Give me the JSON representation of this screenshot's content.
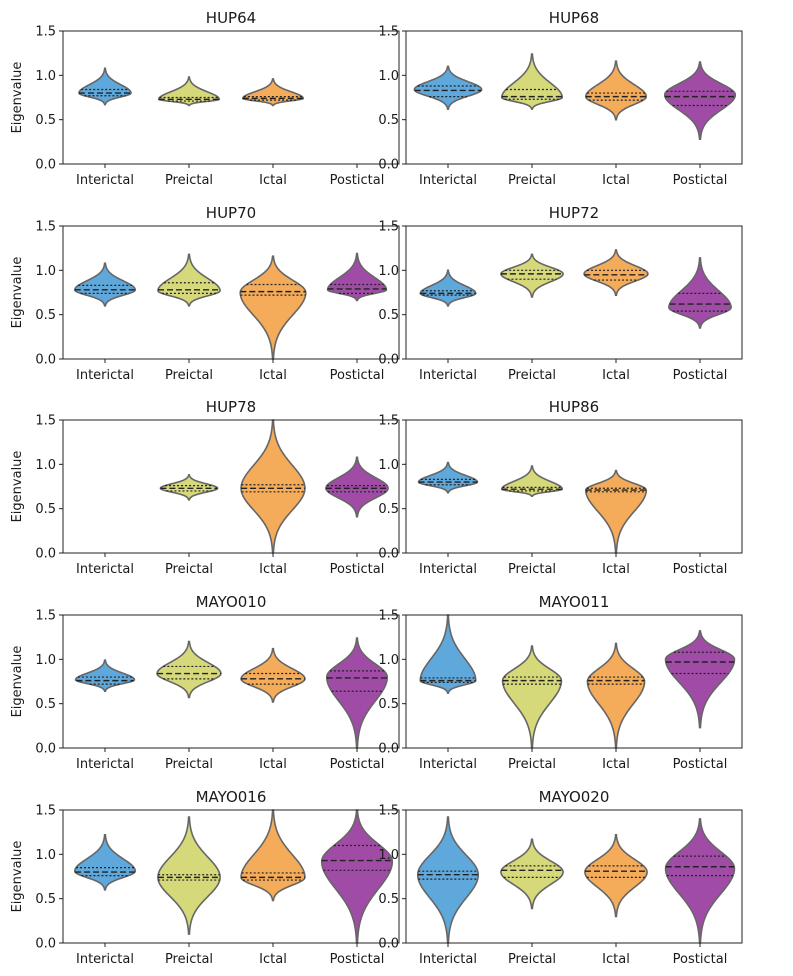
{
  "chart_data": [
    {
      "type": "violin",
      "title": "HUP64",
      "ylabel": "Eigenvalue",
      "ylim": [
        0,
        1.5
      ],
      "yticks": [
        "0.0",
        "0.5",
        "1.0",
        "1.5"
      ],
      "categories": [
        "Interictal",
        "Preictal",
        "Ictal",
        "Postictal"
      ],
      "colors": [
        "#5fa8dc",
        "#d6d97a",
        "#f5ac5a",
        "#a04ca6"
      ],
      "series": [
        {
          "name": "Interictal",
          "min": 0.67,
          "max": 1.08,
          "mode": 0.8,
          "q1": 0.77,
          "median": 0.8,
          "q3": 0.84,
          "maxwidth": 0.62
        },
        {
          "name": "Preictal",
          "min": 0.66,
          "max": 0.98,
          "mode": 0.73,
          "q1": 0.71,
          "median": 0.73,
          "q3": 0.75,
          "maxwidth": 0.72
        },
        {
          "name": "Ictal",
          "min": 0.66,
          "max": 0.96,
          "mode": 0.74,
          "q1": 0.72,
          "median": 0.74,
          "q3": 0.76,
          "maxwidth": 0.72
        },
        null
      ]
    },
    {
      "type": "violin",
      "title": "HUP68",
      "ylabel": "",
      "ylim": [
        0,
        1.5
      ],
      "yticks": [
        "0.0",
        "0.5",
        "1.0",
        "1.5"
      ],
      "categories": [
        "Interictal",
        "Preictal",
        "Ictal",
        "Postictal"
      ],
      "colors": [
        "#5fa8dc",
        "#d6d97a",
        "#f5ac5a",
        "#a04ca6"
      ],
      "series": [
        {
          "name": "Interictal",
          "min": 0.62,
          "max": 1.1,
          "mode": 0.84,
          "q1": 0.76,
          "median": 0.83,
          "q3": 0.88,
          "maxwidth": 0.8
        },
        {
          "name": "Preictal",
          "min": 0.62,
          "max": 1.24,
          "mode": 0.75,
          "q1": 0.73,
          "median": 0.76,
          "q3": 0.84,
          "maxwidth": 0.72
        },
        {
          "name": "Ictal",
          "min": 0.5,
          "max": 1.16,
          "mode": 0.76,
          "q1": 0.72,
          "median": 0.76,
          "q3": 0.8,
          "maxwidth": 0.72
        },
        {
          "name": "Postictal",
          "min": 0.28,
          "max": 1.15,
          "mode": 0.78,
          "q1": 0.66,
          "median": 0.76,
          "q3": 0.82,
          "maxwidth": 0.84
        }
      ]
    },
    {
      "type": "violin",
      "title": "HUP70",
      "ylabel": "Eigenvalue",
      "ylim": [
        0,
        1.5
      ],
      "yticks": [
        "0.0",
        "0.5",
        "1.0",
        "1.5"
      ],
      "categories": [
        "Interictal",
        "Preictal",
        "Ictal",
        "Postictal"
      ],
      "colors": [
        "#5fa8dc",
        "#d6d97a",
        "#f5ac5a",
        "#a04ca6"
      ],
      "series": [
        {
          "name": "Interictal",
          "min": 0.6,
          "max": 1.08,
          "mode": 0.78,
          "q1": 0.74,
          "median": 0.78,
          "q3": 0.83,
          "maxwidth": 0.72
        },
        {
          "name": "Preictal",
          "min": 0.6,
          "max": 1.18,
          "mode": 0.77,
          "q1": 0.74,
          "median": 0.78,
          "q3": 0.86,
          "maxwidth": 0.74
        },
        {
          "name": "Ictal",
          "min": 0.0,
          "max": 1.16,
          "mode": 0.75,
          "q1": 0.72,
          "median": 0.76,
          "q3": 0.84,
          "maxwidth": 0.78
        },
        {
          "name": "Postictal",
          "min": 0.66,
          "max": 1.19,
          "mode": 0.78,
          "q1": 0.74,
          "median": 0.79,
          "q3": 0.84,
          "maxwidth": 0.7
        }
      ]
    },
    {
      "type": "violin",
      "title": "HUP72",
      "ylabel": "",
      "ylim": [
        0,
        1.5
      ],
      "yticks": [
        "0.0",
        "0.5",
        "1.0",
        "1.5"
      ],
      "categories": [
        "Interictal",
        "Preictal",
        "Ictal",
        "Postictal"
      ],
      "colors": [
        "#5fa8dc",
        "#d6d97a",
        "#f5ac5a",
        "#a04ca6"
      ],
      "series": [
        {
          "name": "Interictal",
          "min": 0.6,
          "max": 1.0,
          "mode": 0.74,
          "q1": 0.72,
          "median": 0.74,
          "q3": 0.77,
          "maxwidth": 0.66
        },
        {
          "name": "Preictal",
          "min": 0.7,
          "max": 1.18,
          "mode": 0.96,
          "q1": 0.9,
          "median": 0.96,
          "q3": 1.0,
          "maxwidth": 0.74
        },
        {
          "name": "Ictal",
          "min": 0.72,
          "max": 1.23,
          "mode": 0.96,
          "q1": 0.89,
          "median": 0.95,
          "q3": 1.0,
          "maxwidth": 0.76
        },
        {
          "name": "Postictal",
          "min": 0.35,
          "max": 1.14,
          "mode": 0.58,
          "q1": 0.54,
          "median": 0.62,
          "q3": 0.74,
          "maxwidth": 0.74
        }
      ]
    },
    {
      "type": "violin",
      "title": "HUP78",
      "ylabel": "Eigenvalue",
      "ylim": [
        0,
        1.5
      ],
      "yticks": [
        "0.0",
        "0.5",
        "1.0",
        "1.5"
      ],
      "categories": [
        "Interictal",
        "Preictal",
        "Ictal",
        "Postictal"
      ],
      "colors": [
        "#5fa8dc",
        "#d6d97a",
        "#f5ac5a",
        "#a04ca6"
      ],
      "series": [
        null,
        {
          "name": "Preictal",
          "min": 0.6,
          "max": 0.88,
          "mode": 0.73,
          "q1": 0.7,
          "median": 0.73,
          "q3": 0.76,
          "maxwidth": 0.68
        },
        {
          "name": "Ictal",
          "min": 0.0,
          "max": 1.5,
          "mode": 0.73,
          "q1": 0.69,
          "median": 0.73,
          "q3": 0.77,
          "maxwidth": 0.76
        },
        {
          "name": "Postictal",
          "min": 0.41,
          "max": 1.08,
          "mode": 0.73,
          "q1": 0.69,
          "median": 0.73,
          "q3": 0.76,
          "maxwidth": 0.74
        }
      ]
    },
    {
      "type": "violin",
      "title": "HUP86",
      "ylabel": "",
      "ylim": [
        0,
        1.5
      ],
      "yticks": [
        "0.0",
        "0.5",
        "1.0",
        "1.5"
      ],
      "categories": [
        "Interictal",
        "Preictal",
        "Ictal",
        "Postictal"
      ],
      "colors": [
        "#5fa8dc",
        "#d6d97a",
        "#f5ac5a",
        "#a04ca6"
      ],
      "series": [
        {
          "name": "Interictal",
          "min": 0.68,
          "max": 1.02,
          "mode": 0.8,
          "q1": 0.77,
          "median": 0.8,
          "q3": 0.83,
          "maxwidth": 0.7
        },
        {
          "name": "Preictal",
          "min": 0.64,
          "max": 0.98,
          "mode": 0.72,
          "q1": 0.7,
          "median": 0.72,
          "q3": 0.74,
          "maxwidth": 0.72
        },
        {
          "name": "Ictal",
          "min": 0.0,
          "max": 0.93,
          "mode": 0.71,
          "q1": 0.69,
          "median": 0.71,
          "q3": 0.73,
          "maxwidth": 0.72
        },
        null
      ]
    },
    {
      "type": "violin",
      "title": "MAYO010",
      "ylabel": "Eigenvalue",
      "ylim": [
        0,
        1.5
      ],
      "yticks": [
        "0.0",
        "0.5",
        "1.0",
        "1.5"
      ],
      "categories": [
        "Interictal",
        "Preictal",
        "Ictal",
        "Postictal"
      ],
      "colors": [
        "#5fa8dc",
        "#d6d97a",
        "#f5ac5a",
        "#a04ca6"
      ],
      "series": [
        {
          "name": "Interictal",
          "min": 0.64,
          "max": 0.99,
          "mode": 0.77,
          "q1": 0.72,
          "median": 0.76,
          "q3": 0.8,
          "maxwidth": 0.7
        },
        {
          "name": "Preictal",
          "min": 0.57,
          "max": 1.2,
          "mode": 0.84,
          "q1": 0.78,
          "median": 0.84,
          "q3": 0.92,
          "maxwidth": 0.76
        },
        {
          "name": "Ictal",
          "min": 0.52,
          "max": 1.12,
          "mode": 0.78,
          "q1": 0.72,
          "median": 0.78,
          "q3": 0.84,
          "maxwidth": 0.76
        },
        {
          "name": "Postictal",
          "min": 0.0,
          "max": 1.24,
          "mode": 0.8,
          "q1": 0.64,
          "median": 0.79,
          "q3": 0.87,
          "maxwidth": 0.72
        }
      ]
    },
    {
      "type": "violin",
      "title": "MAYO011",
      "ylabel": "",
      "ylim": [
        0,
        1.5
      ],
      "yticks": [
        "0.0",
        "0.5",
        "1.0",
        "1.5"
      ],
      "categories": [
        "Interictal",
        "Preictal",
        "Ictal",
        "Postictal"
      ],
      "colors": [
        "#5fa8dc",
        "#d6d97a",
        "#f5ac5a",
        "#a04ca6"
      ],
      "series": [
        {
          "name": "Interictal",
          "min": 0.62,
          "max": 1.5,
          "mode": 0.76,
          "q1": 0.74,
          "median": 0.76,
          "q3": 0.79,
          "maxwidth": 0.66
        },
        {
          "name": "Preictal",
          "min": 0.0,
          "max": 1.15,
          "mode": 0.76,
          "q1": 0.72,
          "median": 0.76,
          "q3": 0.8,
          "maxwidth": 0.7
        },
        {
          "name": "Ictal",
          "min": 0.0,
          "max": 1.18,
          "mode": 0.75,
          "q1": 0.72,
          "median": 0.76,
          "q3": 0.8,
          "maxwidth": 0.68
        },
        {
          "name": "Postictal",
          "min": 0.23,
          "max": 1.32,
          "mode": 1.0,
          "q1": 0.84,
          "median": 0.97,
          "q3": 1.08,
          "maxwidth": 0.82
        }
      ]
    },
    {
      "type": "violin",
      "title": "MAYO016",
      "ylabel": "Eigenvalue",
      "ylim": [
        0,
        1.5
      ],
      "yticks": [
        "0.0",
        "0.5",
        "1.0",
        "1.5"
      ],
      "categories": [
        "Interictal",
        "Preictal",
        "Ictal",
        "Postictal"
      ],
      "colors": [
        "#5fa8dc",
        "#d6d97a",
        "#f5ac5a",
        "#a04ca6"
      ],
      "series": [
        {
          "name": "Interictal",
          "min": 0.6,
          "max": 1.22,
          "mode": 0.81,
          "q1": 0.76,
          "median": 0.8,
          "q3": 0.85,
          "maxwidth": 0.72
        },
        {
          "name": "Preictal",
          "min": 0.1,
          "max": 1.42,
          "mode": 0.74,
          "q1": 0.71,
          "median": 0.74,
          "q3": 0.77,
          "maxwidth": 0.74
        },
        {
          "name": "Ictal",
          "min": 0.48,
          "max": 1.5,
          "mode": 0.74,
          "q1": 0.71,
          "median": 0.74,
          "q3": 0.79,
          "maxwidth": 0.76
        },
        {
          "name": "Postictal",
          "min": 0.0,
          "max": 1.5,
          "mode": 0.92,
          "q1": 0.82,
          "median": 0.93,
          "q3": 1.1,
          "maxwidth": 0.84
        }
      ]
    },
    {
      "type": "violin",
      "title": "MAYO020",
      "ylabel": "",
      "ylim": [
        0,
        1.5
      ],
      "yticks": [
        "0.0",
        "0.5",
        "1.0",
        "1.5"
      ],
      "categories": [
        "Interictal",
        "Preictal",
        "Ictal",
        "Postictal"
      ],
      "colors": [
        "#5fa8dc",
        "#d6d97a",
        "#f5ac5a",
        "#a04ca6"
      ],
      "series": [
        {
          "name": "Interictal",
          "min": 0.0,
          "max": 1.42,
          "mode": 0.77,
          "q1": 0.72,
          "median": 0.77,
          "q3": 0.81,
          "maxwidth": 0.72
        },
        {
          "name": "Preictal",
          "min": 0.39,
          "max": 1.17,
          "mode": 0.8,
          "q1": 0.74,
          "median": 0.82,
          "q3": 0.87,
          "maxwidth": 0.74
        },
        {
          "name": "Ictal",
          "min": 0.3,
          "max": 1.22,
          "mode": 0.8,
          "q1": 0.74,
          "median": 0.81,
          "q3": 0.87,
          "maxwidth": 0.74
        },
        {
          "name": "Postictal",
          "min": 0.0,
          "max": 1.4,
          "mode": 0.84,
          "q1": 0.76,
          "median": 0.86,
          "q3": 0.98,
          "maxwidth": 0.82
        }
      ]
    }
  ]
}
